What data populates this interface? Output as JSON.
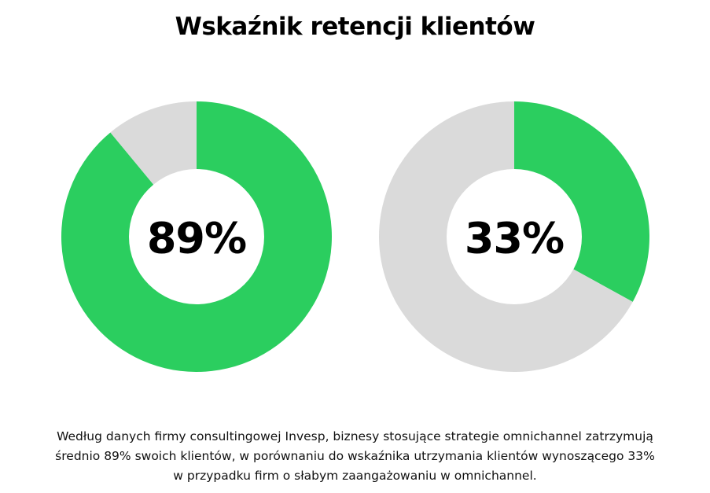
{
  "title": "Wskaźnik retencji klientów",
  "colors": {
    "filled": "#2bce5f",
    "empty": "#dadada",
    "center": "#ffffff",
    "text": "#000000"
  },
  "chart_data": [
    {
      "type": "pie",
      "style": "donut",
      "title": "",
      "center_label": "89%",
      "values": [
        89,
        11
      ]
    },
    {
      "type": "pie",
      "style": "donut",
      "title": "",
      "center_label": "33%",
      "values": [
        33,
        67
      ]
    }
  ],
  "caption": {
    "line1": "Według danych firmy consultingowej Invesp, biznesy stosujące strategie omnichannel zatrzymują",
    "line2": "średnio 89% swoich klientów, w porównaniu do wskaźnika utrzymania klientów wynoszącego 33%",
    "line3": "w przypadku firm o słabym zaangażowaniu w omnichannel."
  }
}
